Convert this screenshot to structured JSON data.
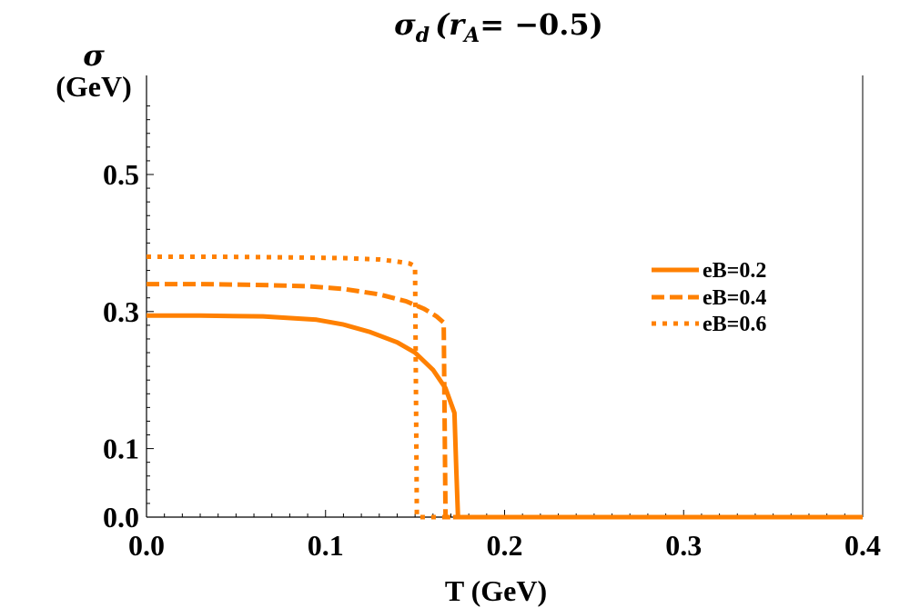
{
  "chart_data": {
    "type": "line",
    "title_main": "σ",
    "title_sub": "d",
    "title_paren_open": "(",
    "title_var": "r",
    "title_var_sub": "A",
    "title_rest": "= −0.5)",
    "ylabel_line1": "σ",
    "ylabel_line2": "(GeV)",
    "xlabel": "T (GeV)",
    "xlim": [
      0.0,
      0.4
    ],
    "ylim": [
      0.0,
      0.6
    ],
    "xticks": [
      {
        "value": 0.0,
        "label": "0.0"
      },
      {
        "value": 0.1,
        "label": "0.1"
      },
      {
        "value": 0.2,
        "label": "0.2"
      },
      {
        "value": 0.3,
        "label": "0.3"
      },
      {
        "value": 0.4,
        "label": "0.4"
      }
    ],
    "yticks": [
      {
        "value": 0.0,
        "label": "0.0"
      },
      {
        "value": 0.1,
        "label": "0.1"
      },
      {
        "value": 0.3,
        "label": "0.3"
      },
      {
        "value": 0.5,
        "label": "0.5"
      }
    ],
    "x_minor_step": 0.01,
    "y_minor_step": 0.02,
    "legend_position": "right",
    "series": [
      {
        "name": "eB=0.2",
        "style": "solid",
        "color": "#FF8000",
        "x": [
          0.0,
          0.03,
          0.065,
          0.095,
          0.11,
          0.125,
          0.14,
          0.15,
          0.16,
          0.167,
          0.172,
          0.173,
          0.174,
          0.4
        ],
        "y": [
          0.294,
          0.294,
          0.293,
          0.288,
          0.281,
          0.27,
          0.255,
          0.24,
          0.215,
          0.188,
          0.152,
          0.07,
          0.0,
          0.0
        ]
      },
      {
        "name": "eB=0.4",
        "style": "dashed",
        "color": "#FF8000",
        "x": [
          0.0,
          0.03,
          0.06,
          0.09,
          0.11,
          0.13,
          0.145,
          0.155,
          0.162,
          0.166,
          0.167,
          0.4
        ],
        "y": [
          0.34,
          0.34,
          0.339,
          0.337,
          0.333,
          0.325,
          0.315,
          0.304,
          0.293,
          0.284,
          0.0,
          0.0
        ]
      },
      {
        "name": "eB=0.6",
        "style": "dotted",
        "color": "#FF8000",
        "x": [
          0.0,
          0.04,
          0.08,
          0.11,
          0.13,
          0.14,
          0.147,
          0.15,
          0.151,
          0.4
        ],
        "y": [
          0.38,
          0.38,
          0.379,
          0.378,
          0.376,
          0.373,
          0.37,
          0.366,
          0.0,
          0.0
        ]
      }
    ]
  }
}
